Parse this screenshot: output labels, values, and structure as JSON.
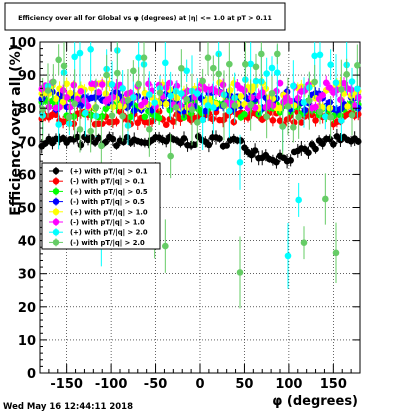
{
  "chart_data": {
    "type": "scatter",
    "title": "Efficiency over all for Global vs φ (degrees) at |η| <= 1.0 at pT > 0.11",
    "xlabel": "φ (degrees)",
    "ylabel": "Efficiency over all (%)",
    "xlim": [
      -180,
      180
    ],
    "ylim": [
      0,
      100
    ],
    "xticks": [
      -150,
      -100,
      -50,
      0,
      50,
      100,
      150
    ],
    "yticks": [
      0,
      10,
      20,
      30,
      40,
      50,
      60,
      70,
      80,
      90,
      100
    ],
    "grid": true,
    "legend_position": "left-middle",
    "timestamp": "Wed May 16 12:44:11 2018",
    "series": [
      {
        "name": "(+) with pT/|q| > 0.1",
        "color": "#000000",
        "marker": "circle",
        "base": 70,
        "spread": 1.5,
        "dip": true,
        "bins": 90
      },
      {
        "name": "(-) with pT/|q| > 0.1",
        "color": "#ff0000",
        "marker": "circle",
        "base": 77,
        "spread": 2.0,
        "dip": false,
        "bins": 90
      },
      {
        "name": "(+) with pT/|q| > 0.5",
        "color": "#00ff00",
        "marker": "circle",
        "base": 80,
        "spread": 3.0,
        "dip": false,
        "bins": 90
      },
      {
        "name": "(-) with pT/|q| > 0.5",
        "color": "#0000ff",
        "marker": "circle",
        "base": 82,
        "spread": 3.0,
        "dip": false,
        "bins": 90
      },
      {
        "name": "(+) with pT/|q| > 1.0",
        "color": "#ffff00",
        "marker": "circle",
        "base": 84,
        "spread": 4.0,
        "dip": false,
        "bins": 90
      },
      {
        "name": "(-) with pT/|q| > 1.0",
        "color": "#ff00ff",
        "marker": "circle",
        "base": 84,
        "spread": 4.0,
        "dip": false,
        "bins": 90
      },
      {
        "name": "(+) with pT/|q| > 2.0",
        "color": "#00ffff",
        "marker": "circle",
        "base": 86,
        "spread": 12.0,
        "dip": false,
        "bins": 60
      },
      {
        "name": "(-) with pT/|q| > 2.0",
        "color": "#66cc66",
        "marker": "circle",
        "base": 85,
        "spread": 12.0,
        "dip": false,
        "bins": 60
      }
    ]
  }
}
